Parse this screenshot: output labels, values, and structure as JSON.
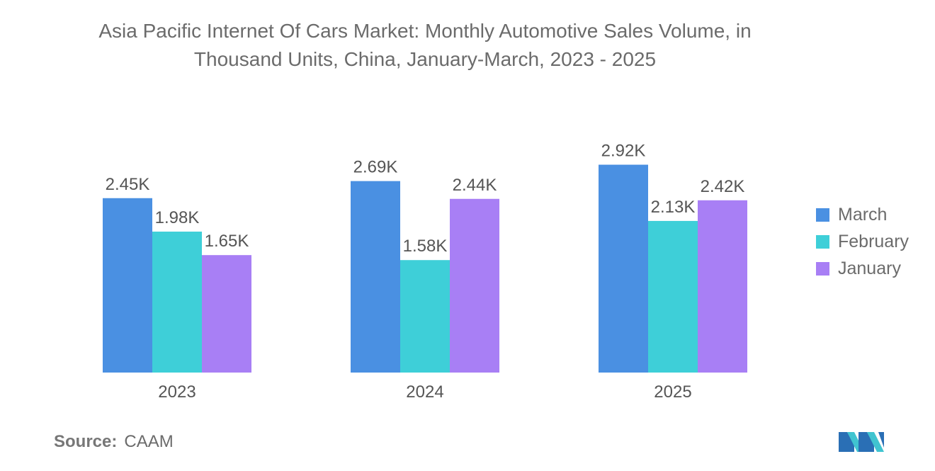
{
  "chart_data": {
    "type": "bar",
    "title_lines": [
      "Asia Pacific Internet Of Cars Market: Monthly Automotive Sales Volume, in",
      "Thousand Units, China, January-March, 2023 - 2025"
    ],
    "categories": [
      "2023",
      "2024",
      "2025"
    ],
    "series": [
      {
        "name": "March",
        "values": [
          2.45,
          2.69,
          2.92
        ],
        "labels": [
          "2.45K",
          "2.69K",
          "2.92K"
        ],
        "color": "#4a90e2"
      },
      {
        "name": "February",
        "values": [
          1.98,
          1.58,
          2.13
        ],
        "labels": [
          "1.98K",
          "1.58K",
          "2.13K"
        ],
        "color": "#3ecfd8"
      },
      {
        "name": "January",
        "values": [
          1.65,
          2.44,
          2.42
        ],
        "labels": [
          "1.65K",
          "2.44K",
          "2.42K"
        ],
        "color": "#a87ff5"
      }
    ],
    "xlabel": "",
    "ylabel": "",
    "ylim": [
      0,
      3.0
    ],
    "grid": false,
    "legend_position": "right"
  },
  "source": {
    "label": "Source:",
    "value": "CAAM"
  },
  "logo": {
    "icon": "mordor-intelligence-logo-icon",
    "colors": [
      "#2a6fb5",
      "#40c4d0"
    ]
  }
}
